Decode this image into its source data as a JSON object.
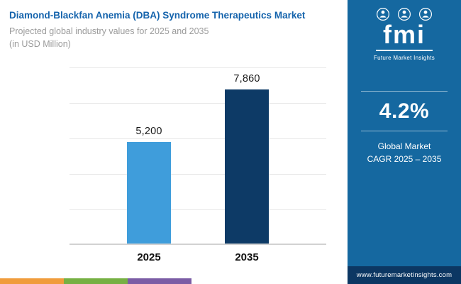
{
  "header": {
    "title": "Diamond-Blackfan Anemia (DBA) Syndrome Therapeutics Market",
    "subtitle": "Projected global industry values for 2025 and 2035",
    "unit_note": "(in USD Million)"
  },
  "chart_data": {
    "type": "bar",
    "title": "Diamond-Blackfan Anemia (DBA) Syndrome Therapeutics Market",
    "subtitle": "Projected global industry values for 2025 and 2035 (in USD Million)",
    "categories": [
      "2025",
      "2035"
    ],
    "values": [
      5200,
      7860
    ],
    "value_labels": [
      "5,200",
      "7,860"
    ],
    "bar_colors": [
      "#3f9ddb",
      "#0d3a66"
    ],
    "ylim": [
      0,
      9000
    ],
    "grid": "horizontal",
    "legend": "none"
  },
  "sidebar": {
    "logo": {
      "text": "fmi",
      "tagline": "Future Market Insights"
    },
    "cagr": {
      "value": "4.2%",
      "label_line1": "Global Market",
      "label_line2": "CAGR 2025 – 2035"
    },
    "website": "www.futuremarketinsights.com"
  },
  "colors": {
    "title_blue": "#1463ac",
    "panel_blue": "#1568a0",
    "panel_footer_blue": "#0c3763",
    "bar_2025": "#3f9ddb",
    "bar_2035": "#0d3a66",
    "strip_orange": "#f09c3c",
    "strip_green": "#76b043",
    "strip_purple": "#7b5ca5"
  }
}
